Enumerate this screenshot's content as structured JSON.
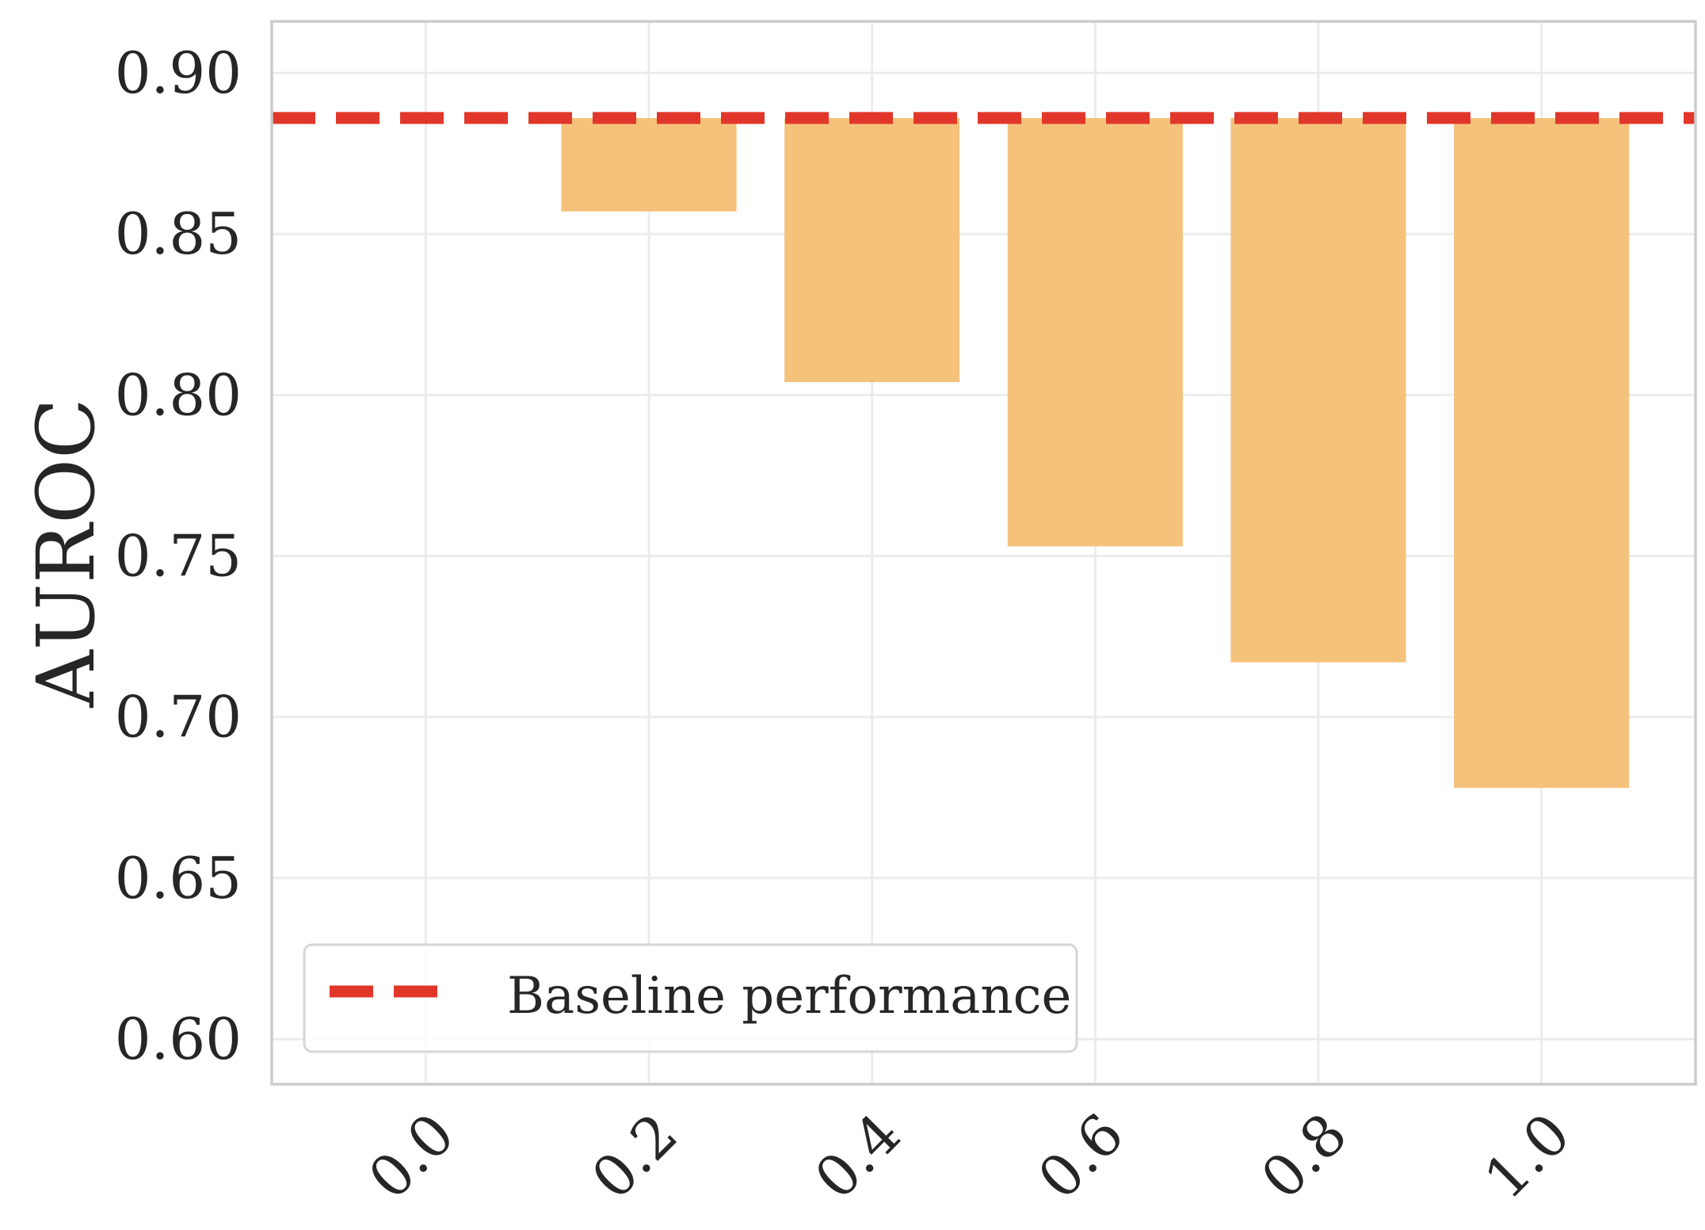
{
  "chart_data": {
    "type": "bar",
    "categories": [
      "0.0",
      "0.2",
      "0.4",
      "0.6",
      "0.8",
      "1.0"
    ],
    "x": [
      0.0,
      0.2,
      0.4,
      0.6,
      0.8,
      1.0
    ],
    "values": [
      0.886,
      0.857,
      0.804,
      0.753,
      0.717,
      0.678
    ],
    "bar_baseline": 0.886,
    "ylabel": "AUROC",
    "xlabel": "",
    "ylim": [
      0.586,
      0.916
    ],
    "yticks": [
      "0.60",
      "0.65",
      "0.70",
      "0.75",
      "0.80",
      "0.85",
      "0.90"
    ],
    "ytick_values": [
      0.6,
      0.65,
      0.7,
      0.75,
      0.8,
      0.85,
      0.9
    ],
    "baseline": {
      "value": 0.886,
      "label": "Baseline performance",
      "style": "dashed"
    },
    "grid": true,
    "legend": {
      "position": "lower-left",
      "entries": [
        "Baseline performance"
      ]
    },
    "colors": {
      "bar": "#f4c27a",
      "baseline": "#e1372b",
      "grid": "#ececec",
      "spine": "#cccccc",
      "text": "#262626"
    }
  }
}
